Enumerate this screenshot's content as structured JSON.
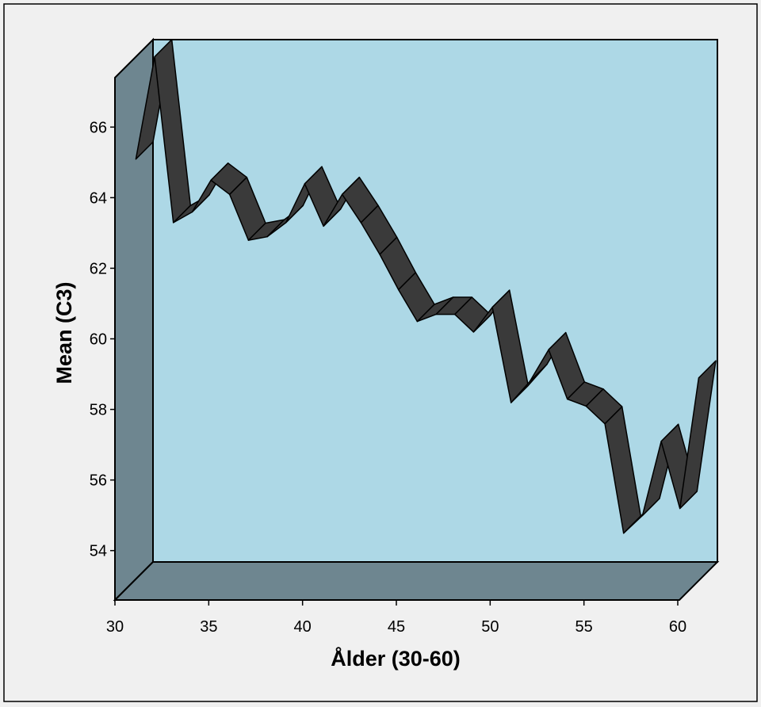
{
  "chart_data": {
    "type": "line",
    "style": "3d-ribbon",
    "title": "",
    "xlabel": "Ålder (30-60)",
    "ylabel": "Mean (C3)",
    "xlim": [
      30,
      60
    ],
    "ylim": [
      52.6,
      67.4
    ],
    "xticks": [
      30,
      35,
      40,
      45,
      50,
      55,
      60
    ],
    "yticks": [
      54,
      56,
      58,
      60,
      62,
      64,
      66
    ],
    "grid": false,
    "colors": {
      "background": "#f0f0f0",
      "back_wall": "#add8e6",
      "side_walls": "#6e8690",
      "ribbon": "#3a3a3a",
      "outline": "#000000"
    },
    "series": [
      {
        "x": [
          30,
          31,
          32,
          33,
          34,
          35,
          36,
          37,
          38,
          39,
          40,
          41,
          42,
          43,
          44,
          45,
          46,
          47,
          48,
          49,
          50,
          51,
          52,
          53,
          54,
          55,
          56,
          57,
          58,
          59,
          60
        ],
        "values": [
          64.5,
          67.4,
          62.7,
          63.0,
          63.9,
          63.5,
          62.2,
          62.3,
          62.7,
          63.8,
          62.6,
          63.5,
          62.7,
          61.8,
          60.8,
          59.9,
          60.1,
          60.1,
          59.6,
          60.3,
          57.6,
          58.2,
          59.1,
          57.7,
          57.5,
          57.0,
          53.9,
          54.4,
          56.5,
          54.6,
          58.3
        ]
      }
    ]
  }
}
